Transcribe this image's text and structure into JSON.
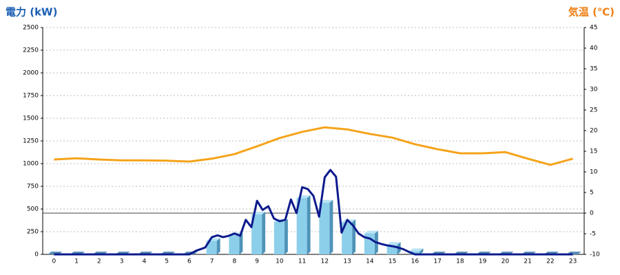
{
  "chart_data": {
    "type": "bar",
    "title": "電力 (kW)",
    "y2_title": "気温 (℃)",
    "title_color": "#1a5fb4",
    "y2_title_color": "#ef7d10",
    "categories": [
      "0",
      "1",
      "2",
      "3",
      "4",
      "5",
      "6",
      "7",
      "8",
      "9",
      "10",
      "11",
      "12",
      "13",
      "14",
      "15",
      "16",
      "17",
      "18",
      "19",
      "20",
      "21",
      "22",
      "23"
    ],
    "ylim": [
      0,
      2500
    ],
    "yticks": [
      0,
      250,
      500,
      750,
      1000,
      1250,
      1500,
      1750,
      2000,
      2250,
      2500
    ],
    "y2lim": [
      -10,
      45
    ],
    "y2ticks": [
      -10,
      -5,
      0,
      5,
      10,
      15,
      20,
      25,
      30,
      35,
      40,
      45
    ],
    "y2_reference_line": 0,
    "grid": true,
    "series": [
      {
        "type": "bar",
        "color": "#8ccfea",
        "values": [
          0,
          0,
          0,
          0,
          0,
          0,
          0,
          150,
          210,
          440,
          360,
          620,
          570,
          355,
          230,
          105,
          35,
          0,
          0,
          0,
          0,
          0,
          0,
          0
        ]
      },
      {
        "type": "line",
        "color": "#0c1a8c",
        "x": [
          0,
          6,
          6.3,
          6.7,
          7,
          7.25,
          7.5,
          7.75,
          8,
          8.25,
          8.5,
          8.75,
          9,
          9.25,
          9.5,
          9.75,
          10,
          10.25,
          10.5,
          10.75,
          11,
          11.25,
          11.5,
          11.75,
          12,
          12.25,
          12.5,
          12.75,
          13,
          13.25,
          13.5,
          13.75,
          14,
          14.25,
          14.5,
          14.75,
          15,
          15.25,
          15.5,
          15.75,
          16,
          23
        ],
        "values": [
          0,
          0,
          40,
          75,
          190,
          210,
          190,
          205,
          230,
          205,
          380,
          300,
          590,
          490,
          530,
          395,
          365,
          380,
          605,
          455,
          740,
          720,
          645,
          415,
          850,
          930,
          855,
          240,
          380,
          320,
          230,
          190,
          175,
          135,
          115,
          100,
          90,
          75,
          55,
          25,
          0,
          0
        ]
      },
      {
        "type": "line",
        "axis": "y2",
        "color": "#f5a31a",
        "values": [
          13,
          13.3,
          13,
          12.8,
          12.8,
          12.7,
          12.5,
          13.2,
          14.3,
          16.2,
          18.2,
          19.7,
          20.8,
          20.3,
          19.2,
          18.3,
          16.7,
          15.5,
          14.5,
          14.5,
          14.8,
          13.2,
          11.7,
          13.2
        ]
      }
    ]
  }
}
